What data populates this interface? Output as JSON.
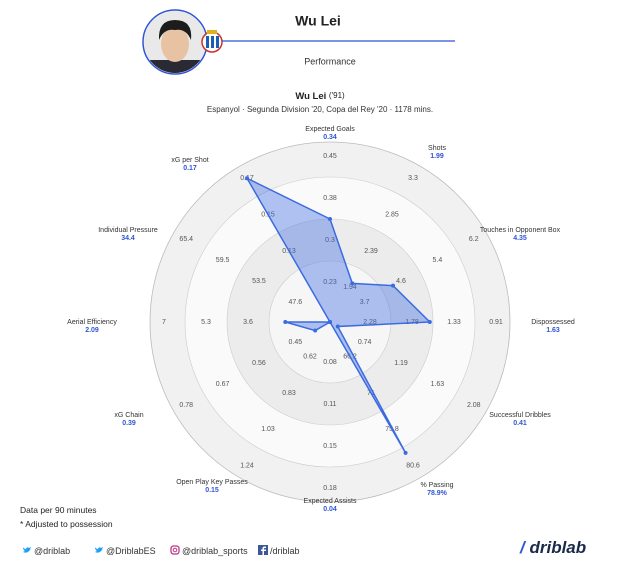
{
  "header": {
    "player_name": "Wu Lei",
    "section": "Performance"
  },
  "chart_data": {
    "type": "radar",
    "title": "Wu Lei",
    "title_note": "('91)",
    "subtitle": "Espanyol · Segunda Division '20, Copa del Rey '20 · 1178 mins.",
    "categories": [
      "Expected Goals",
      "Shots",
      "Touches in Opponent Box",
      "Dispossessed",
      "Successful Dribbles",
      "% Passing",
      "Expected Assists",
      "Open Play Key Passes",
      "xG Chain",
      "Aerial Efficiency",
      "Individual Pressure",
      "xG per Shot"
    ],
    "values": [
      0.34,
      1.99,
      4.35,
      1.63,
      0.41,
      78.9,
      0.04,
      0.15,
      0.39,
      2.09,
      34.4,
      0.17
    ],
    "value_labels": [
      "0.34",
      "1.99",
      "4.35",
      "1.63",
      "0.41",
      "78.9%",
      "0.04",
      "0.15",
      "0.39",
      "2.09",
      "34.4",
      "0.17"
    ],
    "ticks": [
      [
        0.23,
        0.3,
        0.38,
        0.45
      ],
      [
        1.94,
        2.39,
        2.85,
        3.3
      ],
      [
        3.7,
        4.6,
        5.4,
        6.2
      ],
      [
        2.28,
        1.78,
        1.33,
        0.91
      ],
      [
        0.74,
        1.19,
        1.63,
        2.08
      ],
      [
        66.2,
        71,
        75.8,
        80.6
      ],
      [
        0.08,
        0.11,
        0.15,
        0.18
      ],
      [
        0.62,
        0.83,
        1.03,
        1.24
      ],
      [
        0.45,
        0.56,
        0.67,
        0.78
      ],
      [
        3.6,
        5.3,
        7
      ],
      [
        47.6,
        53.5,
        59.5,
        65.4
      ],
      [
        0.13,
        0.15,
        0.17
      ]
    ],
    "color": "#3b6be0"
  },
  "footer": {
    "notes": [
      "Data per 90 minutes",
      "* Adjusted to possession"
    ],
    "social": [
      "@driblab",
      "@DriblabES",
      "@driblab_sports",
      "/driblab"
    ],
    "brand": "driblab"
  }
}
